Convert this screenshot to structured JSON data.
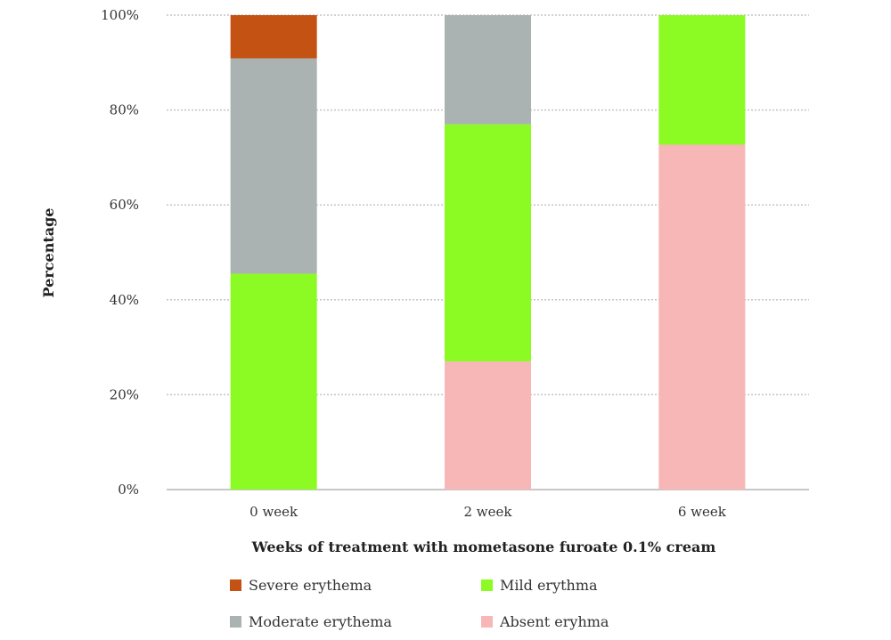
{
  "chart_data": {
    "type": "bar",
    "stacked": true,
    "categories": [
      "0 week",
      "2 week",
      "6 week"
    ],
    "xlabel": "Weeks of treatment with mometasone furoate 0.1% cream",
    "ylabel": "Percentage",
    "ylim": [
      0,
      100
    ],
    "yticks": [
      "0%",
      "20%",
      "40%",
      "60%",
      "80%",
      "100%"
    ],
    "grid": true,
    "legend_position": "bottom",
    "series": [
      {
        "name": "Absent eryhma",
        "color": "#F8B7B7",
        "values": [
          0,
          27,
          72.7
        ]
      },
      {
        "name": "Mild erythma",
        "color": "#8CFA23",
        "values": [
          45.5,
          50,
          27.3
        ]
      },
      {
        "name": "Moderate erythema",
        "color": "#ABB3B2",
        "values": [
          45.4,
          23,
          0
        ]
      },
      {
        "name": "Severe erythema",
        "color": "#C35213",
        "values": [
          9.1,
          0,
          0
        ]
      }
    ]
  },
  "legend": {
    "severe": "Severe erythema",
    "mild": "Mild erythma",
    "moderate": "Moderate erythema",
    "absent": "Absent eryhma"
  }
}
